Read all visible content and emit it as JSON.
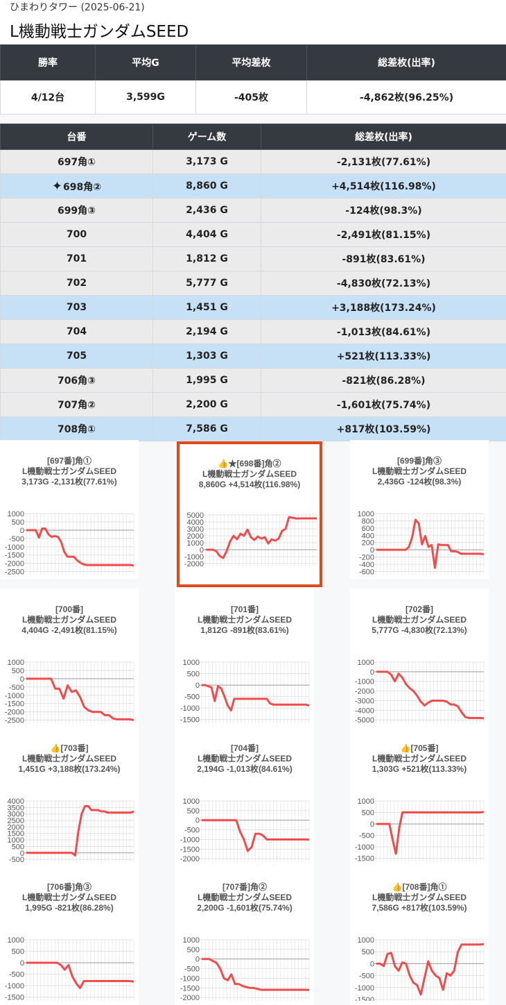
{
  "header": {
    "subtitle": "ひまわりタワー (2025-06-21)",
    "title": "L機動戦士ガンダムSEED"
  },
  "summary": {
    "headers": [
      "勝率",
      "平均G",
      "平均差枚",
      "総差枚(出率)"
    ],
    "values": [
      "4/12台",
      "3,599G",
      "-405枚",
      "-4,862枚(96.25%)"
    ]
  },
  "machines": {
    "headers": [
      "台番",
      "ゲーム数",
      "総差枚(出率)"
    ],
    "rows": [
      {
        "no": "697角①",
        "games": "3,173 G",
        "diff": "-2,131枚(77.61%)",
        "plus": false,
        "sparkle": false
      },
      {
        "no": "698角②",
        "games": "8,860 G",
        "diff": "+4,514枚(116.98%)",
        "plus": true,
        "sparkle": true
      },
      {
        "no": "699角③",
        "games": "2,436 G",
        "diff": "-124枚(98.3%)",
        "plus": false,
        "sparkle": false
      },
      {
        "no": "700",
        "games": "4,404 G",
        "diff": "-2,491枚(81.15%)",
        "plus": false,
        "sparkle": false
      },
      {
        "no": "701",
        "games": "1,812 G",
        "diff": "-891枚(83.61%)",
        "plus": false,
        "sparkle": false
      },
      {
        "no": "702",
        "games": "5,777 G",
        "diff": "-4,830枚(72.13%)",
        "plus": false,
        "sparkle": false
      },
      {
        "no": "703",
        "games": "1,451 G",
        "diff": "+3,188枚(173.24%)",
        "plus": true,
        "sparkle": false
      },
      {
        "no": "704",
        "games": "2,194 G",
        "diff": "-1,013枚(84.61%)",
        "plus": false,
        "sparkle": false
      },
      {
        "no": "705",
        "games": "1,303 G",
        "diff": "+521枚(113.33%)",
        "plus": true,
        "sparkle": false
      },
      {
        "no": "706角③",
        "games": "1,995 G",
        "diff": "-821枚(86.28%)",
        "plus": false,
        "sparkle": false
      },
      {
        "no": "707角②",
        "games": "2,200 G",
        "diff": "-1,601枚(75.74%)",
        "plus": false,
        "sparkle": false
      },
      {
        "no": "708角①",
        "games": "7,586 G",
        "diff": "+817枚(103.59%)",
        "plus": true,
        "sparkle": false
      }
    ]
  },
  "colors": {
    "line": "#f24b4b",
    "highlight_border": "#e0491a",
    "header_bg": "#343a40",
    "plus_row": "#c6e1f5"
  },
  "chart_data": [
    {
      "type": "line",
      "title_lines": [
        "[697番]角①",
        "L機動戦士ガンダムSEED",
        "3,173G -2,131枚(77.61%)"
      ],
      "yticks": [
        1000,
        500,
        0,
        -500,
        -1000,
        -1500,
        -2000,
        -2500
      ],
      "ylim": [
        -2600,
        1000
      ],
      "highlight": false,
      "values": [
        0,
        0,
        0,
        0,
        -450,
        100,
        100,
        -250,
        -400,
        -350,
        -400,
        -700,
        -1300,
        -1600,
        -1600,
        -1600,
        -1800,
        -1950,
        -2050,
        -2100,
        -2100,
        -2100,
        -2100,
        -2100,
        -2100,
        -2100,
        -2100,
        -2100,
        -2100,
        -2100,
        -2100,
        -2100,
        -2100,
        -2100,
        -2131
      ]
    },
    {
      "type": "line",
      "title_lines": [
        "👍★[698番]角②",
        "L機動戦士ガンダムSEED",
        "8,860G +4,514枚(116.98%)"
      ],
      "yticks": [
        5000,
        4000,
        3000,
        2000,
        1000,
        0,
        -1000,
        -2000
      ],
      "ylim": [
        -2200,
        5200
      ],
      "highlight": true,
      "values": [
        0,
        0,
        0,
        -200,
        -900,
        -1200,
        -200,
        1200,
        2000,
        1500,
        2300,
        2000,
        2900,
        1800,
        1400,
        1900,
        1600,
        1800,
        900,
        1500,
        1300,
        1600,
        2700,
        3000,
        4700,
        4600,
        4500,
        4500,
        4514,
        4514,
        4514,
        4514,
        4514
      ]
    },
    {
      "type": "line",
      "title_lines": [
        "[699番]角③",
        "L機動戦士ガンダムSEED",
        "2,436G -124枚(98.3%)"
      ],
      "yticks": [
        1000,
        800,
        600,
        400,
        200,
        0,
        -200,
        -400,
        -600
      ],
      "ylim": [
        -650,
        1000
      ],
      "highlight": false,
      "values": [
        0,
        0,
        0,
        0,
        0,
        0,
        0,
        0,
        0,
        0,
        80,
        350,
        830,
        730,
        150,
        380,
        80,
        130,
        -500,
        150,
        130,
        130,
        130,
        -40,
        -40,
        -60,
        -110,
        -110,
        -110,
        -110,
        -110,
        -110,
        -110,
        -124
      ]
    },
    {
      "type": "line",
      "title_lines": [
        "[700番]",
        "L機動戦士ガンダムSEED",
        "4,404G -2,491枚(81.15%)"
      ],
      "yticks": [
        1000,
        500,
        0,
        -500,
        -1000,
        -1500,
        -2000,
        -2500
      ],
      "ylim": [
        -2600,
        1000
      ],
      "highlight": false,
      "values": [
        0,
        0,
        0,
        0,
        0,
        0,
        0,
        -600,
        -600,
        -1200,
        -400,
        -800,
        -700,
        -1100,
        -1700,
        -1900,
        -2000,
        -2000,
        -2000,
        -2200,
        -2200,
        -2400,
        -2450,
        -2450,
        -2450,
        -2450,
        -2491
      ]
    },
    {
      "type": "line",
      "title_lines": [
        "[701番]",
        "L機動戦士ガンダムSEED",
        "1,812G -891枚(83.61%)"
      ],
      "yticks": [
        1000,
        500,
        0,
        -500,
        -1000,
        -1500
      ],
      "ylim": [
        -1600,
        1000
      ],
      "highlight": false,
      "values": [
        0,
        0,
        -50,
        -100,
        -700,
        -50,
        -150,
        -500,
        -900,
        -1100,
        -600,
        -600,
        -600,
        -600,
        -600,
        -600,
        -600,
        -600,
        -600,
        -600,
        -600,
        -800,
        -850,
        -850,
        -850,
        -850,
        -850,
        -850,
        -850,
        -850,
        -850,
        -850,
        -850,
        -891
      ]
    },
    {
      "type": "line",
      "title_lines": [
        "[702番]",
        "L機動戦士ガンダムSEED",
        "5,777G -4,830枚(72.13%)"
      ],
      "yticks": [
        1000,
        0,
        -1000,
        -2000,
        -3000,
        -4000,
        -5000
      ],
      "ylim": [
        -5200,
        1000
      ],
      "highlight": false,
      "values": [
        0,
        0,
        0,
        0,
        -300,
        -1000,
        -200,
        -600,
        -1300,
        -1700,
        -2000,
        -2500,
        -3100,
        -3500,
        -3200,
        -3000,
        -3000,
        -3000,
        -3000,
        -3100,
        -3400,
        -3400,
        -3600,
        -4200,
        -4700,
        -4800,
        -4800,
        -4800,
        -4800,
        -4830
      ]
    },
    {
      "type": "line",
      "title_lines": [
        "👍[703番]",
        "L機動戦士ガンダムSEED",
        "1,451G +3,188枚(173.24%)"
      ],
      "yticks": [
        4000,
        3500,
        3000,
        2500,
        2000,
        1500,
        1000,
        500,
        0,
        -500
      ],
      "ylim": [
        -600,
        4000
      ],
      "highlight": false,
      "values": [
        0,
        0,
        0,
        0,
        0,
        0,
        0,
        0,
        0,
        0,
        0,
        0,
        0,
        0,
        0,
        -200,
        1700,
        3000,
        3600,
        3600,
        3300,
        3300,
        3300,
        3200,
        3200,
        3100,
        3100,
        3100,
        3100,
        3100,
        3100,
        3100,
        3100,
        3188
      ]
    },
    {
      "type": "line",
      "title_lines": [
        "[704番]",
        "L機動戦士ガンダムSEED",
        "2,194G -1,013枚(84.61%)"
      ],
      "yticks": [
        1000,
        500,
        0,
        -500,
        -1000,
        -1500,
        -2000
      ],
      "ylim": [
        -2100,
        1000
      ],
      "highlight": false,
      "values": [
        0,
        0,
        0,
        0,
        0,
        0,
        0,
        0,
        0,
        0,
        -600,
        -1000,
        -1600,
        -1400,
        -700,
        -700,
        -800,
        -1000,
        -1000,
        -1000,
        -1000,
        -1000,
        -1000,
        -1000,
        -1000,
        -1000,
        -1000,
        -1000,
        -1013
      ]
    },
    {
      "type": "line",
      "title_lines": [
        "👍[705番]",
        "L機動戦士ガンダムSEED",
        "1,303G +521枚(113.33%)"
      ],
      "yticks": [
        1000,
        500,
        0,
        -500,
        -1000,
        -1500
      ],
      "ylim": [
        -1600,
        1000
      ],
      "highlight": false,
      "values": [
        0,
        0,
        0,
        0,
        0,
        -700,
        -1300,
        -200,
        500,
        500,
        500,
        500,
        500,
        500,
        500,
        500,
        500,
        500,
        500,
        500,
        500,
        500,
        500,
        500,
        500,
        500,
        500,
        500,
        500,
        500,
        500,
        500,
        500,
        521
      ]
    },
    {
      "type": "line",
      "title_lines": [
        "[706番]角③",
        "L機動戦士ガンダムSEED",
        "1,995G -821枚(86.28%)"
      ],
      "yticks": [
        1000,
        500,
        0,
        -500,
        -1000,
        -1500
      ],
      "ylim": [
        -1600,
        1000
      ],
      "highlight": false,
      "values": [
        0,
        0,
        0,
        0,
        0,
        0,
        0,
        0,
        0,
        -100,
        -300,
        -100,
        -600,
        -900,
        -1100,
        -800,
        -800,
        -800,
        -800,
        -800,
        -800,
        -800,
        -800,
        -800,
        -800,
        -800,
        -800,
        -800,
        -821
      ]
    },
    {
      "type": "line",
      "title_lines": [
        "[707番]角②",
        "L機動戦士ガンダムSEED",
        "2,200G -1,601枚(75.74%)"
      ],
      "yticks": [
        1000,
        500,
        0,
        -500,
        -1000,
        -1500,
        -2000
      ],
      "ylim": [
        -2100,
        1000
      ],
      "highlight": false,
      "values": [
        0,
        0,
        0,
        -100,
        -200,
        -500,
        -1000,
        -1100,
        -800,
        -1300,
        -1300,
        -1400,
        -1450,
        -1500,
        -1500,
        -1550,
        -1600,
        -1600,
        -1600,
        -1600,
        -1600,
        -1600,
        -1600,
        -1600,
        -1600,
        -1600,
        -1600,
        -1600,
        -1600,
        -1601
      ]
    },
    {
      "type": "line",
      "title_lines": [
        "👍[708番]角①",
        "L機動戦士ガンダムSEED",
        "7,586G +817枚(103.59%)"
      ],
      "yticks": [
        1000,
        500,
        0,
        -500,
        -1000,
        -1500
      ],
      "ylim": [
        -1500,
        1000
      ],
      "highlight": false,
      "values": [
        0,
        0,
        -100,
        400,
        450,
        -100,
        -300,
        50,
        0,
        -500,
        -800,
        -900,
        -1300,
        -600,
        100,
        -300,
        -500,
        -600,
        -1100,
        -400,
        -500,
        -300,
        500,
        800,
        800,
        800,
        800,
        800,
        800,
        817
      ]
    }
  ]
}
